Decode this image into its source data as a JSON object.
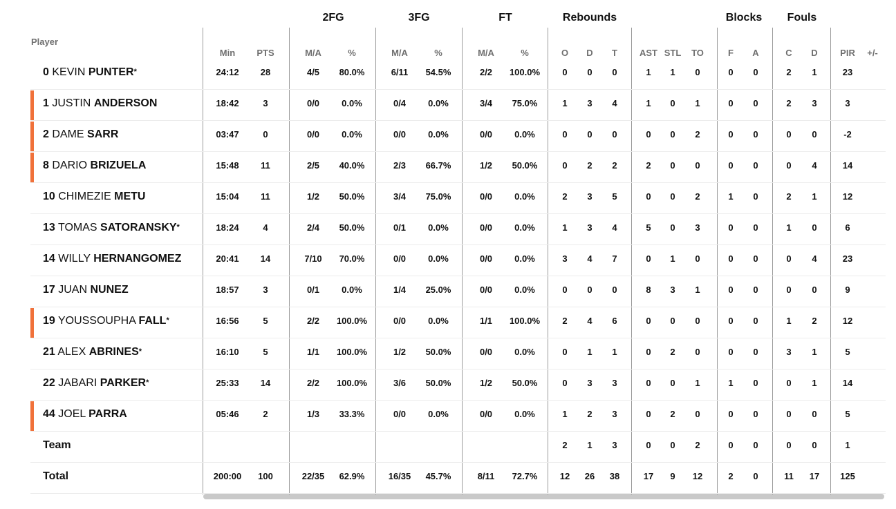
{
  "header": {
    "player_label": "Player",
    "groups": {
      "fg2": "2FG",
      "fg3": "3FG",
      "ft": "FT",
      "rebounds": "Rebounds",
      "blocks": "Blocks",
      "fouls": "Fouls"
    },
    "columns": [
      "Min",
      "PTS",
      "M/A",
      "%",
      "M/A",
      "%",
      "M/A",
      "%",
      "O",
      "D",
      "T",
      "AST",
      "STL",
      "TO",
      "F",
      "A",
      "C",
      "D",
      "PIR",
      "+/-"
    ]
  },
  "players": [
    {
      "number": "0",
      "first": "KEVIN",
      "last": "PUNTER",
      "starter": true,
      "highlight": false,
      "stats": [
        "24:12",
        "28",
        "4/5",
        "80.0%",
        "6/11",
        "54.5%",
        "2/2",
        "100.0%",
        "0",
        "0",
        "0",
        "1",
        "1",
        "0",
        "0",
        "0",
        "2",
        "1",
        "23",
        ""
      ]
    },
    {
      "number": "1",
      "first": "JUSTIN",
      "last": "ANDERSON",
      "starter": false,
      "highlight": true,
      "stats": [
        "18:42",
        "3",
        "0/0",
        "0.0%",
        "0/4",
        "0.0%",
        "3/4",
        "75.0%",
        "1",
        "3",
        "4",
        "1",
        "0",
        "1",
        "0",
        "0",
        "2",
        "3",
        "3",
        ""
      ]
    },
    {
      "number": "2",
      "first": "DAME",
      "last": "SARR",
      "starter": false,
      "highlight": true,
      "stats": [
        "03:47",
        "0",
        "0/0",
        "0.0%",
        "0/0",
        "0.0%",
        "0/0",
        "0.0%",
        "0",
        "0",
        "0",
        "0",
        "0",
        "2",
        "0",
        "0",
        "0",
        "0",
        "-2",
        ""
      ]
    },
    {
      "number": "8",
      "first": "DARIO",
      "last": "BRIZUELA",
      "starter": false,
      "highlight": true,
      "stats": [
        "15:48",
        "11",
        "2/5",
        "40.0%",
        "2/3",
        "66.7%",
        "1/2",
        "50.0%",
        "0",
        "2",
        "2",
        "2",
        "0",
        "0",
        "0",
        "0",
        "0",
        "4",
        "14",
        ""
      ]
    },
    {
      "number": "10",
      "first": "CHIMEZIE",
      "last": "METU",
      "starter": false,
      "highlight": false,
      "stats": [
        "15:04",
        "11",
        "1/2",
        "50.0%",
        "3/4",
        "75.0%",
        "0/0",
        "0.0%",
        "2",
        "3",
        "5",
        "0",
        "0",
        "2",
        "1",
        "0",
        "2",
        "1",
        "12",
        ""
      ]
    },
    {
      "number": "13",
      "first": "TOMAS",
      "last": "SATORANSKY",
      "starter": true,
      "highlight": false,
      "stats": [
        "18:24",
        "4",
        "2/4",
        "50.0%",
        "0/1",
        "0.0%",
        "0/0",
        "0.0%",
        "1",
        "3",
        "4",
        "5",
        "0",
        "3",
        "0",
        "0",
        "1",
        "0",
        "6",
        ""
      ]
    },
    {
      "number": "14",
      "first": "WILLY",
      "last": "HERNANGOMEZ",
      "starter": false,
      "highlight": false,
      "stats": [
        "20:41",
        "14",
        "7/10",
        "70.0%",
        "0/0",
        "0.0%",
        "0/0",
        "0.0%",
        "3",
        "4",
        "7",
        "0",
        "1",
        "0",
        "0",
        "0",
        "0",
        "4",
        "23",
        ""
      ]
    },
    {
      "number": "17",
      "first": "JUAN",
      "last": "NUNEZ",
      "starter": false,
      "highlight": false,
      "stats": [
        "18:57",
        "3",
        "0/1",
        "0.0%",
        "1/4",
        "25.0%",
        "0/0",
        "0.0%",
        "0",
        "0",
        "0",
        "8",
        "3",
        "1",
        "0",
        "0",
        "0",
        "0",
        "9",
        ""
      ]
    },
    {
      "number": "19",
      "first": "YOUSSOUPHA",
      "last": "FALL",
      "starter": true,
      "highlight": true,
      "stats": [
        "16:56",
        "5",
        "2/2",
        "100.0%",
        "0/0",
        "0.0%",
        "1/1",
        "100.0%",
        "2",
        "4",
        "6",
        "0",
        "0",
        "0",
        "0",
        "0",
        "1",
        "2",
        "12",
        ""
      ]
    },
    {
      "number": "21",
      "first": "ALEX",
      "last": "ABRINES",
      "starter": true,
      "highlight": false,
      "stats": [
        "16:10",
        "5",
        "1/1",
        "100.0%",
        "1/2",
        "50.0%",
        "0/0",
        "0.0%",
        "0",
        "1",
        "1",
        "0",
        "2",
        "0",
        "0",
        "0",
        "3",
        "1",
        "5",
        ""
      ]
    },
    {
      "number": "22",
      "first": "JABARI",
      "last": "PARKER",
      "starter": true,
      "highlight": false,
      "stats": [
        "25:33",
        "14",
        "2/2",
        "100.0%",
        "3/6",
        "50.0%",
        "1/2",
        "50.0%",
        "0",
        "3",
        "3",
        "0",
        "0",
        "1",
        "1",
        "0",
        "0",
        "1",
        "14",
        ""
      ]
    },
    {
      "number": "44",
      "first": "JOEL",
      "last": "PARRA",
      "starter": false,
      "highlight": true,
      "stats": [
        "05:46",
        "2",
        "1/3",
        "33.3%",
        "0/0",
        "0.0%",
        "0/0",
        "0.0%",
        "1",
        "2",
        "3",
        "0",
        "2",
        "0",
        "0",
        "0",
        "0",
        "0",
        "5",
        ""
      ]
    }
  ],
  "team": {
    "label": "Team",
    "stats": [
      "",
      "",
      "",
      "",
      "",
      "",
      "",
      "",
      "2",
      "1",
      "3",
      "0",
      "0",
      "2",
      "0",
      "0",
      "0",
      "0",
      "1",
      ""
    ]
  },
  "total": {
    "label": "Total",
    "stats": [
      "200:00",
      "100",
      "22/35",
      "62.9%",
      "16/35",
      "45.7%",
      "8/11",
      "72.7%",
      "12",
      "26",
      "38",
      "17",
      "9",
      "12",
      "2",
      "0",
      "11",
      "17",
      "125",
      ""
    ]
  },
  "colors": {
    "accent": "#f0713a",
    "divider": "#9a9a9a",
    "row_rule": "#ececec",
    "subheader": "#6f6f6f",
    "scrollbar": "#c9c9c9"
  }
}
